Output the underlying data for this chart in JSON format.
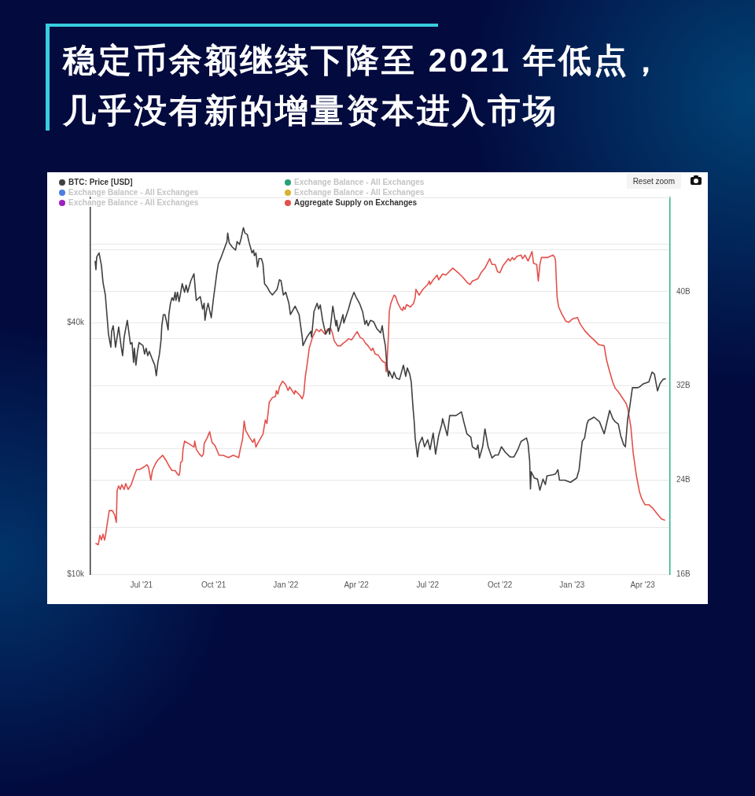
{
  "chart_data": {
    "type": "line",
    "title": "稳定币余额继续下降至 2021 年低点，几乎没有新的增量资本进入市场",
    "annotations": [
      "Reset zoom"
    ],
    "xlim": [
      "2021-04-27",
      "2023-05-06"
    ],
    "xticks": [
      {
        "value": "2021-07-01",
        "label": "Jul '21"
      },
      {
        "value": "2021-10-01",
        "label": "Oct '21"
      },
      {
        "value": "2022-01-01",
        "label": "Jan '22"
      },
      {
        "value": "2022-04-01",
        "label": "Apr '22"
      },
      {
        "value": "2022-07-01",
        "label": "Jul '22"
      },
      {
        "value": "2022-10-01",
        "label": "Oct '22"
      },
      {
        "value": "2023-01-01",
        "label": "Jan '23"
      },
      {
        "value": "2023-04-01",
        "label": "Apr '23"
      }
    ],
    "ylim": [
      10000,
      80000
    ],
    "yticks": [
      {
        "value": 10000,
        "label": "$10k"
      },
      {
        "value": 20000,
        "label": null
      },
      {
        "value": 40000,
        "label": "$40k"
      },
      {
        "value": 60000,
        "label": null
      }
    ],
    "y2lim": [
      16,
      48
    ],
    "y2ticks": [
      {
        "value": 16,
        "label": "16B"
      },
      {
        "value": 20,
        "label": null
      },
      {
        "value": 24,
        "label": "24B"
      },
      {
        "value": 28,
        "label": null
      },
      {
        "value": 32,
        "label": "32B"
      },
      {
        "value": 36,
        "label": null
      },
      {
        "value": 40,
        "label": "40B"
      },
      {
        "value": 44,
        "label": null
      }
    ],
    "log": "y",
    "grid": "y",
    "legend": "top left",
    "series": [
      {
        "name": "BTC: Price [USD]",
        "color": "#404040",
        "x": [
          "2021-05-03",
          "2021-05-04",
          "2021-05-05",
          "2021-05-08",
          "2021-05-11",
          "2021-05-13",
          "2021-05-16",
          "2021-05-18",
          "2021-05-20",
          "2021-05-23",
          "2021-05-24",
          "2021-05-26",
          "2021-05-29",
          "2021-06-02",
          "2021-06-05",
          "2021-06-07",
          "2021-06-09",
          "2021-06-13",
          "2021-06-17",
          "2021-06-19",
          "2021-06-21",
          "2021-06-22",
          "2021-06-24",
          "2021-06-26",
          "2021-06-28",
          "2021-07-03",
          "2021-07-05",
          "2021-07-07",
          "2021-07-09",
          "2021-07-11",
          "2021-07-15",
          "2021-07-18",
          "2021-07-20",
          "2021-07-22",
          "2021-07-24",
          "2021-07-26",
          "2021-07-27",
          "2021-07-29",
          "2021-07-31",
          "2021-08-02",
          "2021-08-04",
          "2021-08-05",
          "2021-08-07",
          "2021-08-09",
          "2021-08-11",
          "2021-08-13",
          "2021-08-14",
          "2021-08-16",
          "2021-08-18",
          "2021-08-22",
          "2021-08-25",
          "2021-08-27",
          "2021-08-29",
          "2021-09-02",
          "2021-09-06",
          "2021-09-08",
          "2021-09-09",
          "2021-09-14",
          "2021-09-17",
          "2021-09-19",
          "2021-09-20",
          "2021-09-22",
          "2021-09-24",
          "2021-09-28",
          "2021-10-01",
          "2021-10-05",
          "2021-10-07",
          "2021-10-10",
          "2021-10-14",
          "2021-10-18",
          "2021-10-19",
          "2021-10-21",
          "2021-10-25",
          "2021-10-29",
          "2021-10-31",
          "2021-11-03",
          "2021-11-05",
          "2021-11-08",
          "2021-11-10",
          "2021-11-13",
          "2021-11-15",
          "2021-11-19",
          "2021-11-21",
          "2021-11-22",
          "2021-11-24",
          "2021-11-26",
          "2021-11-28",
          "2021-12-01",
          "2021-12-03",
          "2021-12-05",
          "2021-12-08",
          "2021-12-12",
          "2021-12-15",
          "2021-12-21",
          "2021-12-24",
          "2021-12-26",
          "2021-12-29",
          "2022-01-01",
          "2022-01-05",
          "2022-01-07",
          "2022-01-13",
          "2022-01-18",
          "2022-01-22",
          "2022-01-23",
          "2022-01-28",
          "2022-02-02",
          "2022-02-03",
          "2022-02-06",
          "2022-02-10",
          "2022-02-12",
          "2022-02-14",
          "2022-02-17",
          "2022-02-21",
          "2022-02-25",
          "2022-02-26",
          "2022-03-02",
          "2022-03-06",
          "2022-03-07",
          "2022-03-09",
          "2022-03-15",
          "2022-03-16",
          "2022-03-22",
          "2022-03-25",
          "2022-03-29",
          "2022-04-01",
          "2022-04-05",
          "2022-04-09",
          "2022-04-12",
          "2022-04-14",
          "2022-04-16",
          "2022-04-19",
          "2022-04-23",
          "2022-04-27",
          "2022-05-02",
          "2022-05-04",
          "2022-05-06",
          "2022-05-08",
          "2022-05-10",
          "2022-05-12",
          "2022-05-13",
          "2022-05-17",
          "2022-05-19",
          "2022-05-22",
          "2022-05-26",
          "2022-05-28",
          "2022-05-31",
          "2022-06-03",
          "2022-06-05",
          "2022-06-08",
          "2022-06-10",
          "2022-06-12",
          "2022-06-14",
          "2022-06-15",
          "2022-06-18",
          "2022-06-20",
          "2022-06-24",
          "2022-06-27",
          "2022-07-01",
          "2022-07-04",
          "2022-07-08",
          "2022-07-11",
          "2022-07-15",
          "2022-07-19",
          "2022-07-20",
          "2022-07-26",
          "2022-07-29",
          "2022-08-06",
          "2022-08-13",
          "2022-08-16",
          "2022-08-20",
          "2022-08-25",
          "2022-08-27",
          "2022-09-01",
          "2022-09-03",
          "2022-09-05",
          "2022-09-09",
          "2022-09-12",
          "2022-09-16",
          "2022-09-21",
          "2022-09-25",
          "2022-09-29",
          "2022-10-03",
          "2022-10-08",
          "2022-10-14",
          "2022-10-19",
          "2022-10-24",
          "2022-10-28",
          "2022-11-04",
          "2022-11-06",
          "2022-11-08",
          "2022-11-09",
          "2022-11-10",
          "2022-11-14",
          "2022-11-18",
          "2022-11-21",
          "2022-11-25",
          "2022-11-28",
          "2022-11-30",
          "2022-12-07",
          "2022-12-11",
          "2022-12-14",
          "2022-12-16",
          "2022-12-23",
          "2022-12-30",
          "2023-01-07",
          "2023-01-10",
          "2023-01-12",
          "2023-01-14",
          "2023-01-17",
          "2023-01-20",
          "2023-01-22",
          "2023-01-26",
          "2023-01-29",
          "2023-02-05",
          "2023-02-11",
          "2023-02-13",
          "2023-02-18",
          "2023-02-22",
          "2023-02-25",
          "2023-03-01",
          "2023-03-04",
          "2023-03-08",
          "2023-03-10",
          "2023-03-13",
          "2023-03-15",
          "2023-03-19",
          "2023-03-22",
          "2023-03-26",
          "2023-03-29",
          "2023-04-02",
          "2023-04-09",
          "2023-04-13",
          "2023-04-16",
          "2023-04-20",
          "2023-04-23",
          "2023-04-27",
          "2023-04-30"
        ],
        "values": [
          56200,
          53700,
          57600,
          58900,
          55000,
          50100,
          46700,
          41900,
          37600,
          35000,
          38200,
          39400,
          35000,
          39100,
          35300,
          33400,
          37000,
          40600,
          35600,
          35900,
          32200,
          34800,
          31700,
          34200,
          35900,
          35300,
          33700,
          34800,
          33400,
          34200,
          32700,
          31700,
          29900,
          32200,
          33700,
          36400,
          39400,
          41900,
          41900,
          40300,
          38500,
          41900,
          44600,
          46000,
          45300,
          47400,
          45300,
          47400,
          45000,
          49700,
          47400,
          49300,
          47400,
          50500,
          52500,
          47400,
          45300,
          46300,
          43200,
          44600,
          40600,
          42900,
          44600,
          41200,
          46000,
          52500,
          55400,
          57100,
          59800,
          62700,
          65700,
          62200,
          60800,
          59800,
          62700,
          61700,
          63700,
          67700,
          65700,
          65200,
          62700,
          58900,
          59800,
          58000,
          58900,
          54500,
          57100,
          57100,
          55400,
          49700,
          48900,
          47400,
          46700,
          48200,
          50800,
          50500,
          46700,
          47400,
          44600,
          41900,
          43900,
          41900,
          37000,
          35300,
          37000,
          38200,
          37000,
          42600,
          44600,
          43200,
          44200,
          40600,
          37600,
          38800,
          37600,
          43900,
          39400,
          40600,
          38200,
          41900,
          40000,
          43200,
          45300,
          47400,
          46000,
          44600,
          42600,
          39700,
          40600,
          39400,
          40600,
          40300,
          38800,
          37900,
          39400,
          37000,
          35300,
          31700,
          29800,
          30700,
          29500,
          30500,
          29500,
          29300,
          30200,
          31700,
          29800,
          31200,
          30200,
          28900,
          25500,
          22900,
          21200,
          19100,
          20500,
          21300,
          20200,
          21000,
          19900,
          21800,
          19400,
          21500,
          22900,
          23600,
          21500,
          24000,
          24000,
          24500,
          23200,
          21700,
          21300,
          20200,
          19900,
          20400,
          19000,
          20200,
          22300,
          20200,
          19000,
          19300,
          19300,
          20200,
          19600,
          19100,
          19100,
          19900,
          20800,
          21200,
          20500,
          18700,
          16000,
          17600,
          17000,
          16900,
          15900,
          16900,
          16400,
          17200,
          17300,
          17400,
          17800,
          16800,
          16800,
          16600,
          17000,
          17800,
          19300,
          20800,
          21200,
          22900,
          23400,
          23600,
          23800,
          23200,
          21700,
          22500,
          24700,
          23600,
          23200,
          22900,
          21500,
          20400,
          20200,
          23600,
          24700,
          28000,
          28000,
          28000,
          28200,
          28600,
          28900,
          30500,
          30200,
          27500,
          28600,
          29300,
          29400
        ]
      },
      {
        "name": "Exchange Balance - All Exchanges",
        "color": "#26a17b"
      },
      {
        "name": "Exchange Balance - All Exchanges",
        "color": "#4a80e0"
      },
      {
        "name": "Exchange Balance - All Exchanges",
        "color": "#d6b42e"
      },
      {
        "name": "Exchange Balance - All Exchanges",
        "color": "#9c1fc2"
      },
      {
        "name": "Aggregate Supply on Exchanges",
        "color": "#e3514c",
        "axis": "y2",
        "x": [
          "2021-05-04",
          "2021-05-07",
          "2021-05-09",
          "2021-05-11",
          "2021-05-13",
          "2021-05-15",
          "2021-05-16",
          "2021-05-18",
          "2021-05-21",
          "2021-05-25",
          "2021-05-28",
          "2021-05-30",
          "2021-05-31",
          "2021-06-02",
          "2021-06-04",
          "2021-06-06",
          "2021-06-09",
          "2021-06-11",
          "2021-06-14",
          "2021-06-18",
          "2021-06-22",
          "2021-06-25",
          "2021-06-29",
          "2021-07-04",
          "2021-07-08",
          "2021-07-10",
          "2021-07-11",
          "2021-07-13",
          "2021-07-15",
          "2021-07-19",
          "2021-07-22",
          "2021-07-28",
          "2021-08-02",
          "2021-08-06",
          "2021-08-09",
          "2021-08-13",
          "2021-08-16",
          "2021-08-18",
          "2021-08-19",
          "2021-08-20",
          "2021-08-22",
          "2021-08-23",
          "2021-08-25",
          "2021-08-30",
          "2021-09-06",
          "2021-09-07",
          "2021-09-09",
          "2021-09-13",
          "2021-09-16",
          "2021-09-18",
          "2021-09-19",
          "2021-09-23",
          "2021-09-26",
          "2021-09-29",
          "2021-10-03",
          "2021-10-08",
          "2021-10-13",
          "2021-10-20",
          "2021-10-26",
          "2021-11-02",
          "2021-11-04",
          "2021-11-07",
          "2021-11-09",
          "2021-11-11",
          "2021-11-16",
          "2021-11-20",
          "2021-11-22",
          "2021-11-24",
          "2021-11-27",
          "2021-12-03",
          "2021-12-06",
          "2021-12-08",
          "2021-12-11",
          "2021-12-15",
          "2021-12-19",
          "2021-12-20",
          "2021-12-22",
          "2021-12-24",
          "2021-12-28",
          "2022-01-01",
          "2022-01-04",
          "2022-01-06",
          "2022-01-12",
          "2022-01-13",
          "2022-01-19",
          "2022-01-22",
          "2022-01-24",
          "2022-01-26",
          "2022-01-28",
          "2022-01-31",
          "2022-02-04",
          "2022-02-09",
          "2022-02-13",
          "2022-02-15",
          "2022-02-20",
          "2022-02-23",
          "2022-02-27",
          "2022-03-01",
          "2022-03-04",
          "2022-03-08",
          "2022-03-12",
          "2022-03-15",
          "2022-03-19",
          "2022-03-22",
          "2022-03-26",
          "2022-04-02",
          "2022-04-06",
          "2022-04-09",
          "2022-04-13",
          "2022-04-16",
          "2022-04-20",
          "2022-04-22",
          "2022-04-25",
          "2022-04-29",
          "2022-05-03",
          "2022-05-06",
          "2022-05-08",
          "2022-05-09",
          "2022-05-10",
          "2022-05-12",
          "2022-05-13",
          "2022-05-15",
          "2022-05-19",
          "2022-05-21",
          "2022-05-24",
          "2022-05-28",
          "2022-05-30",
          "2022-05-31",
          "2022-06-02",
          "2022-06-04",
          "2022-06-09",
          "2022-06-13",
          "2022-06-15",
          "2022-06-16",
          "2022-06-20",
          "2022-06-25",
          "2022-07-01",
          "2022-07-03",
          "2022-07-04",
          "2022-07-08",
          "2022-07-13",
          "2022-07-15",
          "2022-07-20",
          "2022-07-24",
          "2022-08-02",
          "2022-08-09",
          "2022-08-15",
          "2022-08-20",
          "2022-08-24",
          "2022-08-27",
          "2022-08-31",
          "2022-09-03",
          "2022-09-07",
          "2022-09-12",
          "2022-09-18",
          "2022-09-21",
          "2022-09-25",
          "2022-09-28",
          "2022-10-01",
          "2022-10-05",
          "2022-10-12",
          "2022-10-14",
          "2022-10-17",
          "2022-10-19",
          "2022-10-23",
          "2022-10-28",
          "2022-10-30",
          "2022-11-02",
          "2022-11-06",
          "2022-11-11",
          "2022-11-13",
          "2022-11-17",
          "2022-11-19",
          "2022-11-21",
          "2022-11-23",
          "2022-12-01",
          "2022-12-08",
          "2022-12-10",
          "2022-12-11",
          "2022-12-12",
          "2022-12-13",
          "2022-12-15",
          "2022-12-19",
          "2022-12-24",
          "2022-12-28",
          "2023-01-02",
          "2023-01-08",
          "2023-01-11",
          "2023-01-17",
          "2023-01-24",
          "2023-01-29",
          "2023-02-04",
          "2023-02-11",
          "2023-02-14",
          "2023-02-18",
          "2023-02-22",
          "2023-02-25",
          "2023-03-01",
          "2023-03-06",
          "2023-03-11",
          "2023-03-13",
          "2023-03-17",
          "2023-03-20",
          "2023-03-24",
          "2023-03-28",
          "2023-03-31",
          "2023-04-04",
          "2023-04-09",
          "2023-04-14",
          "2023-04-20",
          "2023-04-25",
          "2023-04-29"
        ],
        "values": [
          18.6,
          18.5,
          19.3,
          18.9,
          19.4,
          18.9,
          19.2,
          20.1,
          21.4,
          21.4,
          21.0,
          20.4,
          23.1,
          23.5,
          23.2,
          23.6,
          23.2,
          23.7,
          23.2,
          23.6,
          24.4,
          24.9,
          24.9,
          25.1,
          25.3,
          25.1,
          24.7,
          24.0,
          24.8,
          25.4,
          25.7,
          26.1,
          25.6,
          25.1,
          24.8,
          24.8,
          24.5,
          24.4,
          24.7,
          25.5,
          25.6,
          26.6,
          27.3,
          27.1,
          26.8,
          27.3,
          26.6,
          26.2,
          26.0,
          26.2,
          27.1,
          27.6,
          28.1,
          27.2,
          26.9,
          26.1,
          26.1,
          25.9,
          26.1,
          25.9,
          26.6,
          27.5,
          29.0,
          28.2,
          27.6,
          27.2,
          27.5,
          26.8,
          27.2,
          27.9,
          29.1,
          28.8,
          30.6,
          31.0,
          31.1,
          31.6,
          31.3,
          31.9,
          32.4,
          32.1,
          31.6,
          31.9,
          31.3,
          31.6,
          31.2,
          30.9,
          31.3,
          32.8,
          33.7,
          35.2,
          36.1,
          36.8,
          36.6,
          36.8,
          36.4,
          36.8,
          36.9,
          36.6,
          35.8,
          35.4,
          35.4,
          35.6,
          35.8,
          36.0,
          35.9,
          36.6,
          36.1,
          36.0,
          35.6,
          35.4,
          35.0,
          35.2,
          34.7,
          34.6,
          34.2,
          34.0,
          34.0,
          33.2,
          33.7,
          36.4,
          38.3,
          39.0,
          39.7,
          39.6,
          39.0,
          38.5,
          38.4,
          38.7,
          38.5,
          38.9,
          38.7,
          39.0,
          39.5,
          40.2,
          39.7,
          40.2,
          40.6,
          40.9,
          40.6,
          41.0,
          41.4,
          41.0,
          41.5,
          41.4,
          42.0,
          41.6,
          41.2,
          40.8,
          40.6,
          40.9,
          41.0,
          41.1,
          41.6,
          42.0,
          42.8,
          42.3,
          42.3,
          41.7,
          41.6,
          42.2,
          42.8,
          42.6,
          42.9,
          42.7,
          43.0,
          43.1,
          42.8,
          43.1,
          42.6,
          43.4,
          42.4,
          42.3,
          40.9,
          42.3,
          42.9,
          42.9,
          43.1,
          42.9,
          42.6,
          40.9,
          39.5,
          38.7,
          38.1,
          37.5,
          37.4,
          37.7,
          37.8,
          37.3,
          36.7,
          36.2,
          35.9,
          35.5,
          35.4,
          34.2,
          33.2,
          32.3,
          31.8,
          31.5,
          31.0,
          30.5,
          30.1,
          28.5,
          26.3,
          24.4,
          23.0,
          22.4,
          21.9,
          21.9,
          21.6,
          21.1,
          20.7,
          20.6
        ]
      }
    ]
  }
}
